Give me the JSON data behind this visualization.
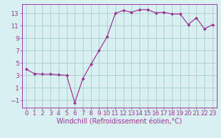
{
  "x": [
    0,
    1,
    2,
    3,
    4,
    5,
    6,
    7,
    8,
    9,
    10,
    11,
    12,
    13,
    14,
    15,
    16,
    17,
    18,
    19,
    20,
    21,
    22,
    23
  ],
  "y": [
    4.0,
    3.3,
    3.2,
    3.2,
    3.1,
    3.0,
    -1.4,
    2.5,
    4.8,
    7.0,
    9.3,
    13.0,
    13.5,
    13.2,
    13.6,
    13.6,
    13.1,
    13.2,
    12.9,
    12.9,
    11.2,
    12.3,
    10.5,
    11.2
  ],
  "line_color": "#993399",
  "marker": "D",
  "marker_size": 2.0,
  "bg_color": "#d8f0f0",
  "grid_color": "#aacccc",
  "xlabel": "Windchill (Refroidissement éolien,°C)",
  "ylim": [
    -2.2,
    14.5
  ],
  "yticks": [
    -1,
    1,
    3,
    5,
    7,
    9,
    11,
    13
  ],
  "xticks": [
    0,
    1,
    2,
    3,
    4,
    5,
    6,
    7,
    8,
    9,
    10,
    11,
    12,
    13,
    14,
    15,
    16,
    17,
    18,
    19,
    20,
    21,
    22,
    23
  ],
  "tick_color": "#993399",
  "label_color": "#993399",
  "font_size": 6.5,
  "xlabel_fontsize": 7.0
}
